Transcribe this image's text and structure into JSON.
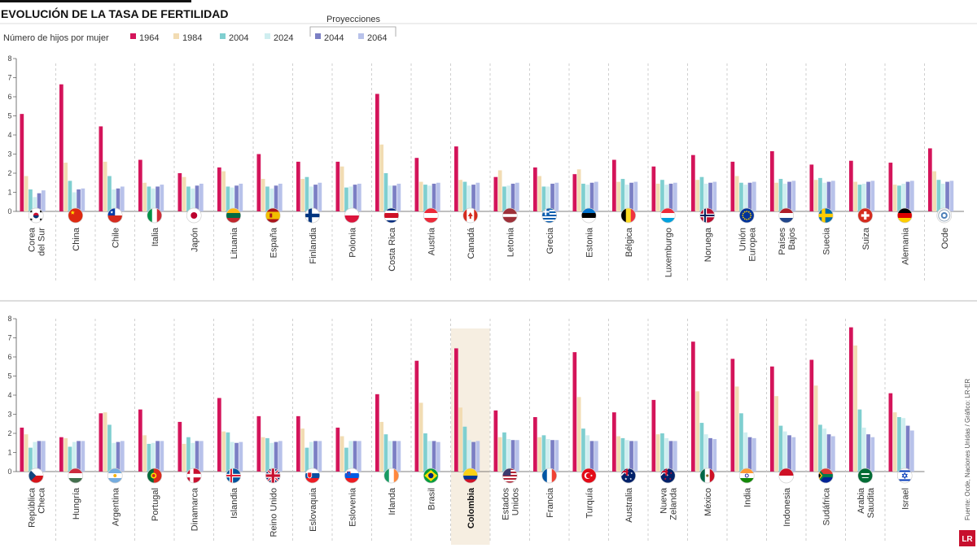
{
  "title": "EVOLUCIÓN DE LA TASA DE FERTILIDAD",
  "subtitle": "Número de hijos por mujer",
  "projections_label": "Proyecciones",
  "source": "Fuente: Ocde, Naciones Unidas / Gráfico: LR-ER",
  "logo_text": "LR",
  "colors": {
    "1964": "#d4145a",
    "1984": "#f2dcb3",
    "2004": "#7fcfd0",
    "2024": "#cfeef0",
    "2044": "#7b7fc4",
    "2064": "#b8c2ea",
    "highlight": "#f6eee1"
  },
  "highlight_country": "Colombia",
  "chart_data": {
    "type": "bar",
    "ylim": [
      0,
      8
    ],
    "yticks": [
      "0",
      "1",
      "2",
      "3",
      "4",
      "5",
      "6",
      "7",
      "8"
    ],
    "series_names": [
      "1964",
      "1984",
      "2004",
      "2024",
      "2044",
      "2064"
    ],
    "panels": [
      {
        "countries": [
          {
            "name": "Corea del Sur",
            "label": [
              "Corea",
              "del Sur"
            ],
            "flag": "flag-south-korea",
            "values": [
              5.1,
              1.85,
              1.15,
              0.75,
              0.95,
              1.1
            ]
          },
          {
            "name": "China",
            "label": [
              "China"
            ],
            "flag": "flag-china",
            "values": [
              6.65,
              2.55,
              1.6,
              1.0,
              1.15,
              1.2
            ]
          },
          {
            "name": "Chile",
            "label": [
              "Chile"
            ],
            "flag": "flag-chile",
            "values": [
              4.45,
              2.6,
              1.85,
              1.15,
              1.2,
              1.3
            ]
          },
          {
            "name": "Italia",
            "label": [
              "Italia"
            ],
            "flag": "flag-italy",
            "values": [
              2.7,
              1.5,
              1.3,
              1.2,
              1.3,
              1.4
            ]
          },
          {
            "name": "Japón",
            "label": [
              "Japón"
            ],
            "flag": "flag-japan",
            "values": [
              2.0,
              1.8,
              1.3,
              1.2,
              1.35,
              1.45
            ]
          },
          {
            "name": "Lituania",
            "label": [
              "Lituania"
            ],
            "flag": "flag-lithuania",
            "values": [
              2.3,
              2.1,
              1.3,
              1.25,
              1.35,
              1.45
            ]
          },
          {
            "name": "España",
            "label": [
              "España"
            ],
            "flag": "flag-spain",
            "values": [
              3.0,
              1.7,
              1.3,
              1.2,
              1.35,
              1.45
            ]
          },
          {
            "name": "Finlandia",
            "label": [
              "Finlandia"
            ],
            "flag": "flag-finland",
            "values": [
              2.6,
              1.7,
              1.8,
              1.3,
              1.4,
              1.5
            ]
          },
          {
            "name": "Polonia",
            "label": [
              "Polonia"
            ],
            "flag": "flag-poland",
            "values": [
              2.6,
              2.35,
              1.25,
              1.3,
              1.4,
              1.45
            ]
          },
          {
            "name": "Costa Rica",
            "label": [
              "Costa Rica"
            ],
            "flag": "flag-costa-rica",
            "values": [
              6.15,
              3.5,
              2.0,
              1.35,
              1.35,
              1.45
            ]
          },
          {
            "name": "Austria",
            "label": [
              "Austria"
            ],
            "flag": "flag-austria",
            "values": [
              2.8,
              1.55,
              1.4,
              1.35,
              1.45,
              1.5
            ]
          },
          {
            "name": "Canadá",
            "label": [
              "Canadá"
            ],
            "flag": "flag-canada",
            "values": [
              3.4,
              1.65,
              1.55,
              1.35,
              1.4,
              1.5
            ]
          },
          {
            "name": "Letonia",
            "label": [
              "Letonia"
            ],
            "flag": "flag-latvia",
            "values": [
              1.8,
              2.15,
              1.3,
              1.35,
              1.45,
              1.5
            ]
          },
          {
            "name": "Grecia",
            "label": [
              "Grecia"
            ],
            "flag": "flag-greece",
            "values": [
              2.3,
              1.85,
              1.3,
              1.3,
              1.45,
              1.5
            ]
          },
          {
            "name": "Estonia",
            "label": [
              "Estonia"
            ],
            "flag": "flag-estonia",
            "values": [
              1.95,
              2.2,
              1.45,
              1.4,
              1.5,
              1.55
            ]
          },
          {
            "name": "Bélgica",
            "label": [
              "Bélgica"
            ],
            "flag": "flag-belgium",
            "values": [
              2.7,
              1.55,
              1.7,
              1.4,
              1.5,
              1.55
            ]
          },
          {
            "name": "Luxemburgo",
            "label": [
              "Luxemburgo"
            ],
            "flag": "flag-luxembourg",
            "values": [
              2.35,
              1.45,
              1.65,
              1.4,
              1.45,
              1.5
            ]
          },
          {
            "name": "Noruega",
            "label": [
              "Noruega"
            ],
            "flag": "flag-norway",
            "values": [
              2.95,
              1.65,
              1.8,
              1.45,
              1.5,
              1.55
            ]
          },
          {
            "name": "Unión Europea",
            "label": [
              "Unión",
              "Europea"
            ],
            "flag": "flag-eu",
            "values": [
              2.6,
              1.85,
              1.5,
              1.4,
              1.5,
              1.55
            ]
          },
          {
            "name": "Países Bajos",
            "label": [
              "Países",
              "Bajos"
            ],
            "flag": "flag-netherlands",
            "values": [
              3.15,
              1.5,
              1.7,
              1.45,
              1.55,
              1.6
            ]
          },
          {
            "name": "Suecia",
            "label": [
              "Suecia"
            ],
            "flag": "flag-sweden",
            "values": [
              2.45,
              1.65,
              1.75,
              1.5,
              1.55,
              1.6
            ]
          },
          {
            "name": "Suiza",
            "label": [
              "Suiza"
            ],
            "flag": "flag-switzerland",
            "values": [
              2.65,
              1.55,
              1.4,
              1.45,
              1.55,
              1.6
            ]
          },
          {
            "name": "Alemania",
            "label": [
              "Alemania"
            ],
            "flag": "flag-germany",
            "values": [
              2.55,
              1.4,
              1.35,
              1.45,
              1.55,
              1.6
            ]
          },
          {
            "name": "Ocde",
            "label": [
              "Ocde"
            ],
            "flag": "flag-ocde",
            "values": [
              3.3,
              2.1,
              1.65,
              1.45,
              1.55,
              1.6
            ]
          }
        ]
      },
      {
        "countries": [
          {
            "name": "República Checa",
            "label": [
              "República",
              "Checa"
            ],
            "flag": "flag-czech",
            "values": [
              2.3,
              1.95,
              1.25,
              1.55,
              1.6,
              1.6
            ]
          },
          {
            "name": "Hungría",
            "label": [
              "Hungría"
            ],
            "flag": "flag-hungary",
            "values": [
              1.8,
              1.75,
              1.3,
              1.55,
              1.6,
              1.6
            ]
          },
          {
            "name": "Argentina",
            "label": [
              "Argentina"
            ],
            "flag": "flag-argentina",
            "values": [
              3.05,
              3.1,
              2.45,
              1.5,
              1.55,
              1.6
            ]
          },
          {
            "name": "Portugal",
            "label": [
              "Portugal"
            ],
            "flag": "flag-portugal",
            "values": [
              3.25,
              1.9,
              1.45,
              1.5,
              1.6,
              1.6
            ]
          },
          {
            "name": "Dinamarca",
            "label": [
              "Dinamarca"
            ],
            "flag": "flag-denmark",
            "values": [
              2.6,
              1.45,
              1.8,
              1.5,
              1.6,
              1.6
            ]
          },
          {
            "name": "Islandia",
            "label": [
              "Islandia"
            ],
            "flag": "flag-iceland",
            "values": [
              3.85,
              2.1,
              2.05,
              1.55,
              1.5,
              1.55
            ]
          },
          {
            "name": "Reino Unido",
            "label": [
              "Reino Unido"
            ],
            "flag": "flag-uk",
            "values": [
              2.9,
              1.8,
              1.75,
              1.5,
              1.55,
              1.6
            ]
          },
          {
            "name": "Eslovaquia",
            "label": [
              "Eslovaquia"
            ],
            "flag": "flag-slovakia",
            "values": [
              2.9,
              2.25,
              1.25,
              1.55,
              1.6,
              1.6
            ]
          },
          {
            "name": "Eslovenia",
            "label": [
              "Eslovenia"
            ],
            "flag": "flag-slovenia",
            "values": [
              2.3,
              1.85,
              1.25,
              1.6,
              1.6,
              1.6
            ]
          },
          {
            "name": "Irlanda",
            "label": [
              "Irlanda"
            ],
            "flag": "flag-ireland",
            "values": [
              4.05,
              2.6,
              1.95,
              1.6,
              1.6,
              1.6
            ]
          },
          {
            "name": "Brasil",
            "label": [
              "Brasil"
            ],
            "flag": "flag-brazil",
            "values": [
              5.8,
              3.6,
              2.0,
              1.6,
              1.6,
              1.55
            ]
          },
          {
            "name": "Colombia",
            "label": [
              "Colombia"
            ],
            "flag": "flag-colombia",
            "values": [
              6.45,
              3.35,
              2.35,
              1.65,
              1.55,
              1.6
            ]
          },
          {
            "name": "Estados Unidos",
            "label": [
              "Estados",
              "Unidos"
            ],
            "flag": "flag-usa",
            "values": [
              3.2,
              1.8,
              2.05,
              1.7,
              1.65,
              1.65
            ]
          },
          {
            "name": "Francia",
            "label": [
              "Francia"
            ],
            "flag": "flag-france",
            "values": [
              2.85,
              1.8,
              1.9,
              1.7,
              1.65,
              1.65
            ]
          },
          {
            "name": "Turquía",
            "label": [
              "Turquía"
            ],
            "flag": "flag-turkey",
            "values": [
              6.25,
              3.9,
              2.25,
              1.9,
              1.6,
              1.6
            ]
          },
          {
            "name": "Australia",
            "label": [
              "Australia"
            ],
            "flag": "flag-australia",
            "values": [
              3.1,
              1.85,
              1.75,
              1.65,
              1.6,
              1.6
            ]
          },
          {
            "name": "Nueva Zelanda",
            "label": [
              "Nueva",
              "Zelanda"
            ],
            "flag": "flag-new-zealand",
            "values": [
              3.75,
              1.95,
              2.0,
              1.75,
              1.6,
              1.6
            ]
          },
          {
            "name": "México",
            "label": [
              "México"
            ],
            "flag": "flag-mexico",
            "values": [
              6.8,
              4.2,
              2.55,
              1.95,
              1.75,
              1.7
            ]
          },
          {
            "name": "India",
            "label": [
              "India"
            ],
            "flag": "flag-india",
            "values": [
              5.9,
              4.45,
              3.05,
              2.05,
              1.8,
              1.75
            ]
          },
          {
            "name": "Indonesia",
            "label": [
              "Indonesia"
            ],
            "flag": "flag-indonesia",
            "values": [
              5.5,
              3.95,
              2.4,
              2.1,
              1.9,
              1.8
            ]
          },
          {
            "name": "Sudáfrica",
            "label": [
              "Sudáfrica"
            ],
            "flag": "flag-south-africa",
            "values": [
              5.85,
              4.5,
              2.45,
              2.25,
              1.95,
              1.85
            ]
          },
          {
            "name": "Arabia Saudita",
            "label": [
              "Arabia",
              "Saudita"
            ],
            "flag": "flag-saudi-arabia",
            "values": [
              7.55,
              6.6,
              3.25,
              2.3,
              1.95,
              1.8
            ]
          },
          {
            "name": "Israel",
            "label": [
              "Israel"
            ],
            "flag": "flag-israel",
            "values": [
              4.1,
              3.1,
              2.85,
              2.8,
              2.4,
              2.15
            ]
          }
        ]
      }
    ]
  }
}
